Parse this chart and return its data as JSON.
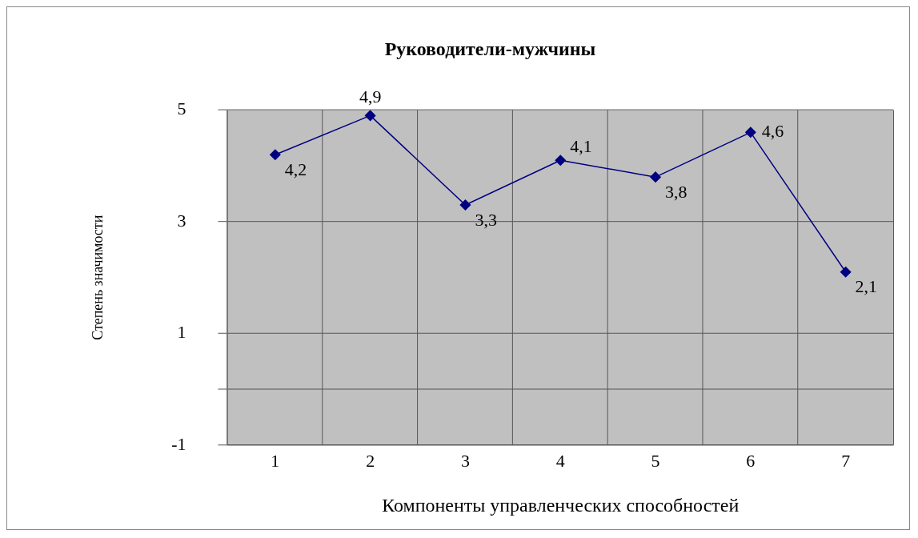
{
  "chart_data": {
    "type": "line",
    "title": "Руководители-мужчины",
    "xlabel": "Компоненты управленческих способностей",
    "ylabel": "Степень значимости",
    "categories": [
      "1",
      "2",
      "3",
      "4",
      "5",
      "6",
      "7"
    ],
    "series": [
      {
        "color": "#000080",
        "values": [
          4.2,
          4.9,
          3.3,
          4.1,
          3.8,
          4.6,
          2.1
        ],
        "value_labels": [
          "4,2",
          "4,9",
          "3,3",
          "4,1",
          "3,8",
          "4,6",
          "2,1"
        ]
      }
    ],
    "ylim": [
      -1,
      5
    ],
    "yticks": [
      -1,
      {
        "value": 0,
        "label": null
      },
      1,
      3,
      5
    ],
    "grid": true,
    "legend": false,
    "marker": "diamond",
    "line_style": "solid"
  }
}
